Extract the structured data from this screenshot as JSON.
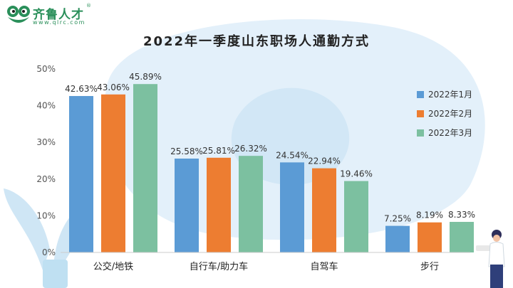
{
  "brand": {
    "name": "齐鲁人才",
    "registered": "®",
    "url": "www.qlrc.com",
    "color": "#2a8f5a"
  },
  "chart_data": {
    "type": "bar",
    "title": "2022年一季度山东职场人通勤方式",
    "categories": [
      "公交/地铁",
      "自行车/助力车",
      "自驾车",
      "步行"
    ],
    "series": [
      {
        "name": "2022年1月",
        "color": "#5b9bd5",
        "values": [
          42.63,
          25.58,
          24.54,
          7.25
        ]
      },
      {
        "name": "2022年2月",
        "color": "#ed7d31",
        "values": [
          43.06,
          25.81,
          22.94,
          8.19
        ]
      },
      {
        "name": "2022年3月",
        "color": "#7cc0a0",
        "values": [
          45.89,
          26.32,
          19.46,
          8.33
        ]
      }
    ],
    "ylim": [
      0,
      50
    ],
    "yticks": [
      "0%",
      "10%",
      "20%",
      "30%",
      "40%",
      "50%"
    ],
    "value_suffix": "%",
    "grid": false,
    "legend_position": "right"
  }
}
